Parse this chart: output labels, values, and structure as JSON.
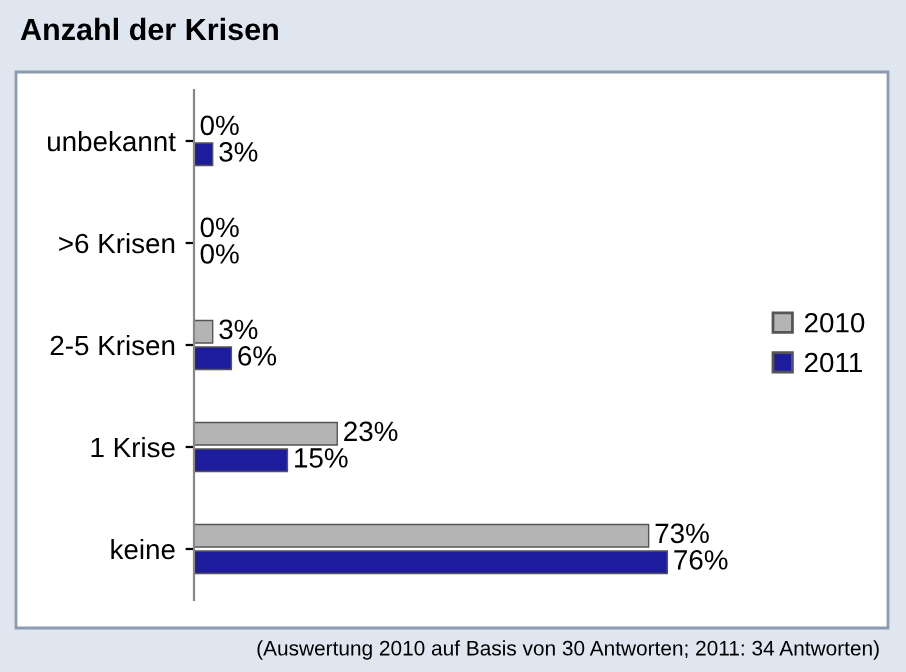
{
  "chart_data": {
    "type": "bar",
    "orientation": "horizontal",
    "title": "Anzahl der Krisen",
    "categories": [
      "unbekannt",
      ">6 Krisen",
      "2-5 Krisen",
      "1 Krise",
      "keine"
    ],
    "series": [
      {
        "name": "2010",
        "color": "#b4b4b4",
        "values": [
          0,
          0,
          3,
          23,
          73
        ],
        "value_labels": [
          "0%",
          "0%",
          "3%",
          "23%",
          "73%"
        ]
      },
      {
        "name": "2011",
        "color": "#1c1c9c",
        "values": [
          3,
          0,
          6,
          15,
          76
        ],
        "value_labels": [
          "3%",
          "0%",
          "6%",
          "15%",
          "76%"
        ]
      }
    ],
    "legend": "right",
    "grid": false,
    "tick_labels": "y",
    "annotations": [
      "(Auswertung 2010 auf Basis von 30 Antworten; 2011: 34 Antworten)"
    ]
  }
}
